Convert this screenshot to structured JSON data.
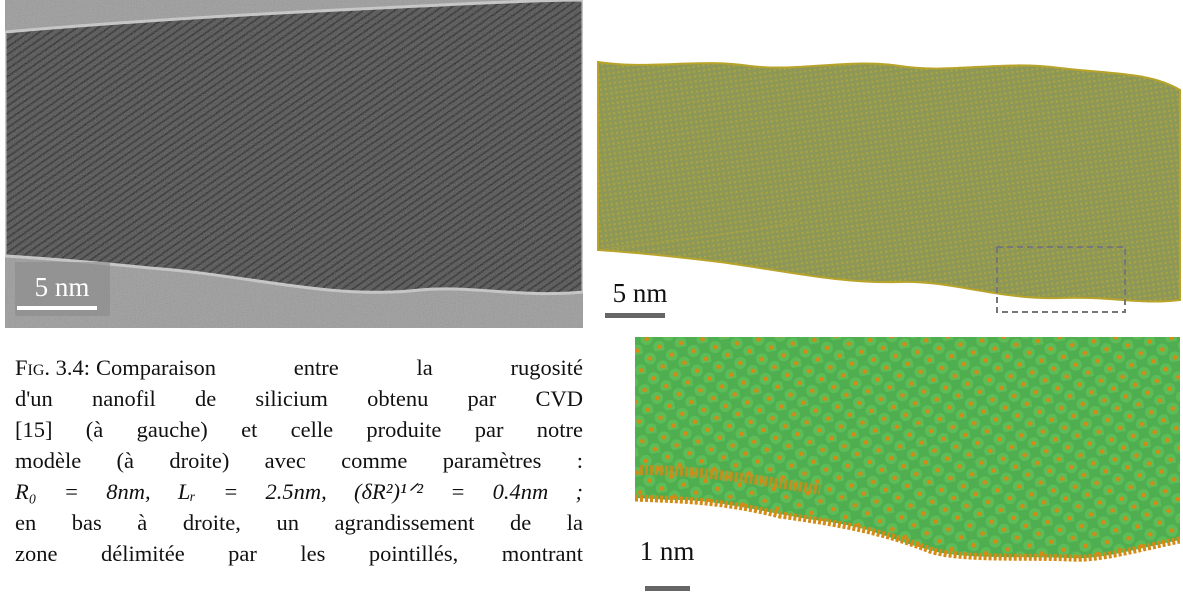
{
  "figure": {
    "panels": {
      "tem": {
        "scale_label": "5 nm"
      },
      "model": {
        "scale_label": "5 nm"
      },
      "zoom": {
        "scale_label": "1 nm"
      }
    },
    "caption": {
      "label": "Fig. 3.4:",
      "lines": [
        "Comparaison entre la rugosité",
        "d'un nanofil de silicium obtenu par CVD",
        "[15] (à gauche) et celle produite par notre",
        "modèle (à droite) avec comme paramètres :",
        "R₀ = 8nm, Lᵣ = 2.5nm, (δR²)¹ᐟ² = 0.4nm ;",
        "en bas à droite, un agrandissement de la",
        "zone délimitée par les pointillés, montrant"
      ]
    }
  }
}
